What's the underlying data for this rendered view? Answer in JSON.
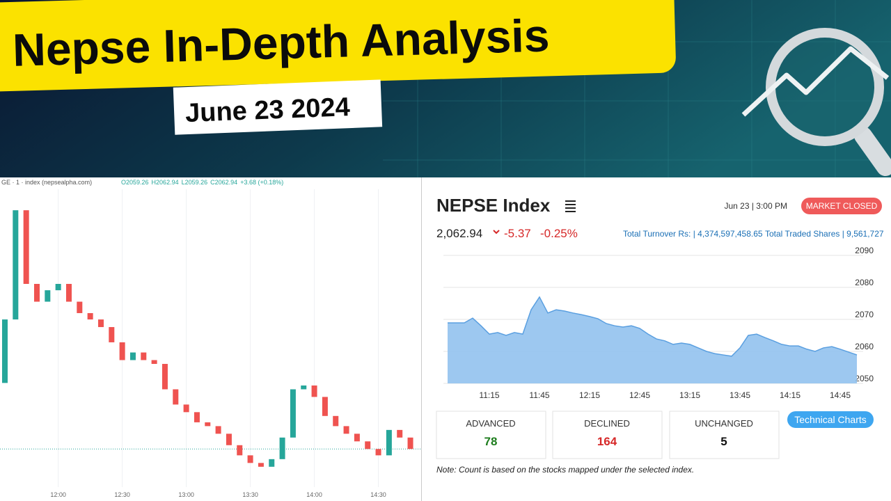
{
  "header": {
    "title": "Nepse In-Depth Analysis",
    "date": "June 23 2024"
  },
  "left_panel": {
    "symbol": "GE · 1 · index (nepsealpha.com)",
    "ohlc": [
      "O2059.26",
      "H2062.94",
      "L2059.26",
      "C2062.94",
      "+3.68 (+0.18%)"
    ]
  },
  "right_panel": {
    "timestamp": "Jun 23 | 3:00 PM",
    "status": "MARKET CLOSED",
    "index_value": "2,062.94",
    "change": "-5.37",
    "change_percent": "-0.25%",
    "turnover": "Total Turnover Rs: | 4,374,597,458.65",
    "traded_shares": "Total Traded Shares | 9,561,727",
    "stats": [
      {
        "label": "ADVANCED",
        "value": 78,
        "color": "#1e7d1e"
      },
      {
        "label": "DECLINED",
        "value": 164,
        "color": "#d62828"
      },
      {
        "label": "UNCHANGED",
        "value": 5,
        "color": "#111111"
      }
    ],
    "button": "Technical Charts",
    "note": "Note: Count is based on the stocks mapped under the selected index."
  },
  "chart_data": [
    {
      "type": "candlestick",
      "categories": [
        null,
        null,
        null,
        null,
        null,
        "12:00",
        null,
        null,
        null,
        null,
        null,
        "12:30",
        null,
        null,
        null,
        null,
        null,
        "13:00",
        null,
        null,
        null,
        null,
        null,
        "13:30",
        null,
        null,
        null,
        null,
        null,
        "14:00",
        null,
        null,
        null,
        null,
        null,
        "14:30",
        null,
        null,
        null
      ],
      "open": [
        2065.2,
        2070.2,
        2078.8,
        2073,
        2071.6,
        2072.5,
        2073,
        2071.6,
        2070.7,
        2070.2,
        2069.6,
        2068.4,
        2067,
        2067.6,
        2067,
        2066.7,
        2064.7,
        2063.5,
        2062.9,
        2062.1,
        2061.8,
        2061.2,
        2060.3,
        2059.5,
        2058.9,
        2058.6,
        2059.2,
        2060.9,
        2064.7,
        2065,
        2064.1,
        2062.6,
        2061.8,
        2061.2,
        2060.6,
        2060,
        2059.5,
        2061.5,
        2060.9
      ],
      "close": [
        2070.2,
        2078.8,
        2073,
        2071.6,
        2072.5,
        2073,
        2071.6,
        2070.7,
        2070.2,
        2069.6,
        2068.4,
        2067,
        2067.6,
        2067,
        2066.7,
        2064.7,
        2063.5,
        2062.9,
        2062.1,
        2061.8,
        2061.2,
        2060.3,
        2059.5,
        2058.9,
        2058.6,
        2059.2,
        2060.9,
        2064.7,
        2065,
        2064.1,
        2062.6,
        2061.8,
        2061.2,
        2060.6,
        2060,
        2059.5,
        2061.5,
        2060.9,
        2060
      ],
      "ylim": [
        2057,
        2081
      ],
      "up_color": "#26a69a",
      "down_color": "#ef5350"
    },
    {
      "type": "area",
      "title": "NEPSE Index",
      "categories": [
        null,
        null,
        null,
        null,
        null,
        "11:15",
        null,
        null,
        null,
        null,
        null,
        "11:45",
        null,
        null,
        null,
        null,
        null,
        "12:15",
        null,
        null,
        null,
        null,
        null,
        "12:45",
        null,
        null,
        null,
        null,
        null,
        "13:15",
        null,
        null,
        null,
        null,
        null,
        "13:45",
        null,
        null,
        null,
        null,
        null,
        "14:15",
        null,
        null,
        null,
        null,
        null,
        "14:45",
        null,
        null
      ],
      "values": [
        2068.9,
        2068.9,
        2068.9,
        2070.4,
        2068,
        2065.4,
        2065.9,
        2065,
        2065.9,
        2065.4,
        2073,
        2077,
        2072,
        2073,
        2072.6,
        2072,
        2071.5,
        2070.9,
        2070.2,
        2068.7,
        2068,
        2067.6,
        2068,
        2067.2,
        2065.4,
        2063.9,
        2063.3,
        2062.2,
        2062.6,
        2062.2,
        2061.1,
        2060,
        2059.3,
        2058.9,
        2058.5,
        2061.1,
        2065,
        2065.4,
        2064.3,
        2063.3,
        2062.2,
        2061.7,
        2061.7,
        2060.7,
        2060,
        2061.1,
        2061.5,
        2060.7,
        2059.8,
        2058.9
      ],
      "ylim": [
        2050,
        2090
      ],
      "yticks": [
        2050,
        2060,
        2070,
        2080,
        2090
      ],
      "color": "#92c2ee",
      "line_color": "#5a9fe0",
      "grid": true
    }
  ]
}
